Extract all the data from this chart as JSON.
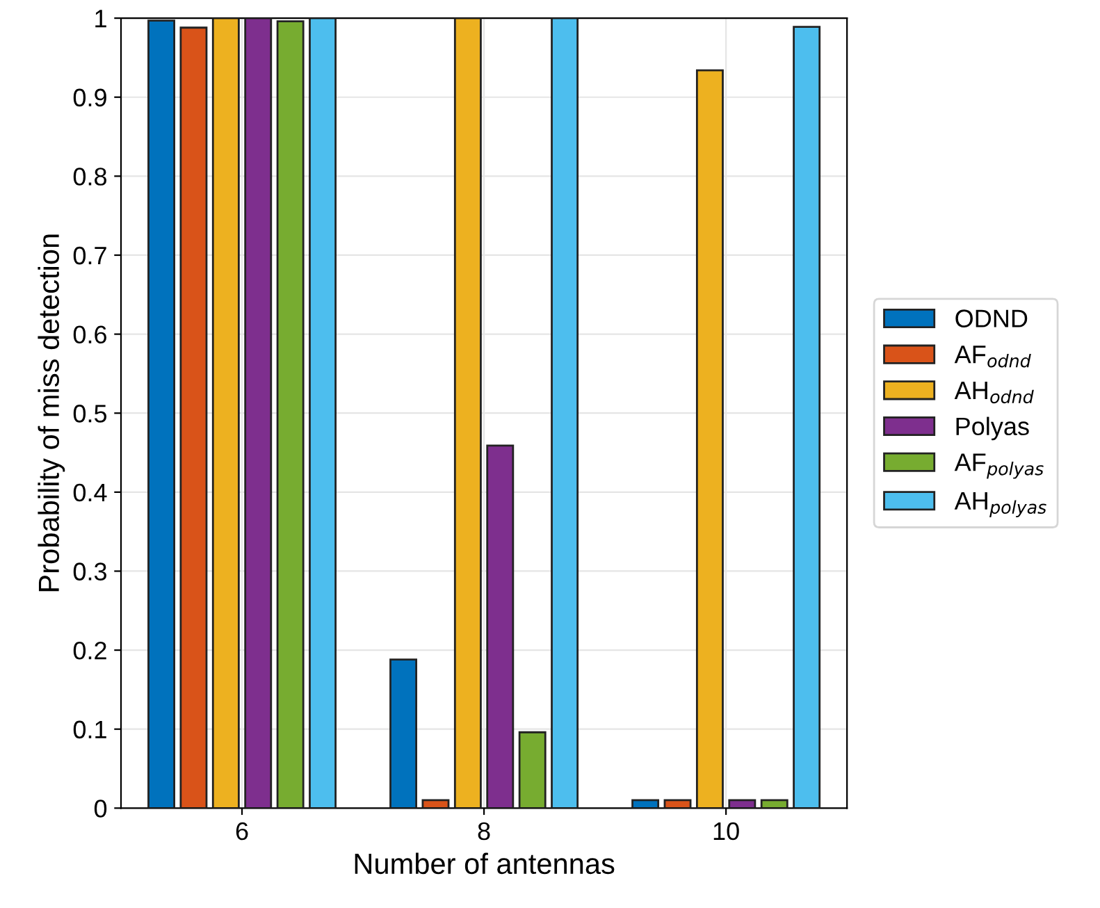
{
  "chart_data": {
    "type": "bar",
    "xlabel": "Number of antennas",
    "ylabel": "Probability of miss detection",
    "categories": [
      "6",
      "8",
      "10"
    ],
    "series": [
      {
        "name": "ODND",
        "color": "#0072bd",
        "values": [
          0.997,
          0.188,
          0.01
        ]
      },
      {
        "name": "AF$_{odnd}$",
        "color": "#d95319",
        "values": [
          0.988,
          0.01,
          0.01
        ]
      },
      {
        "name": "AH$_{odnd}$",
        "color": "#edb120",
        "values": [
          1.0,
          1.0,
          0.934
        ]
      },
      {
        "name": "Polyas",
        "color": "#7e2f8e",
        "values": [
          1.0,
          0.459,
          0.01
        ]
      },
      {
        "name": "AF$_{polyas}$",
        "color": "#77ac30",
        "values": [
          0.996,
          0.096,
          0.01
        ]
      },
      {
        "name": "AH$_{polyas}$",
        "color": "#4dbeee",
        "values": [
          1.0,
          1.0,
          0.989
        ]
      }
    ],
    "ylim": [
      0,
      1
    ],
    "yticks": [
      0,
      0.1,
      0.2,
      0.3,
      0.4,
      0.5,
      0.6,
      0.7,
      0.8,
      0.9,
      1
    ],
    "grid": true,
    "legend": "right"
  }
}
